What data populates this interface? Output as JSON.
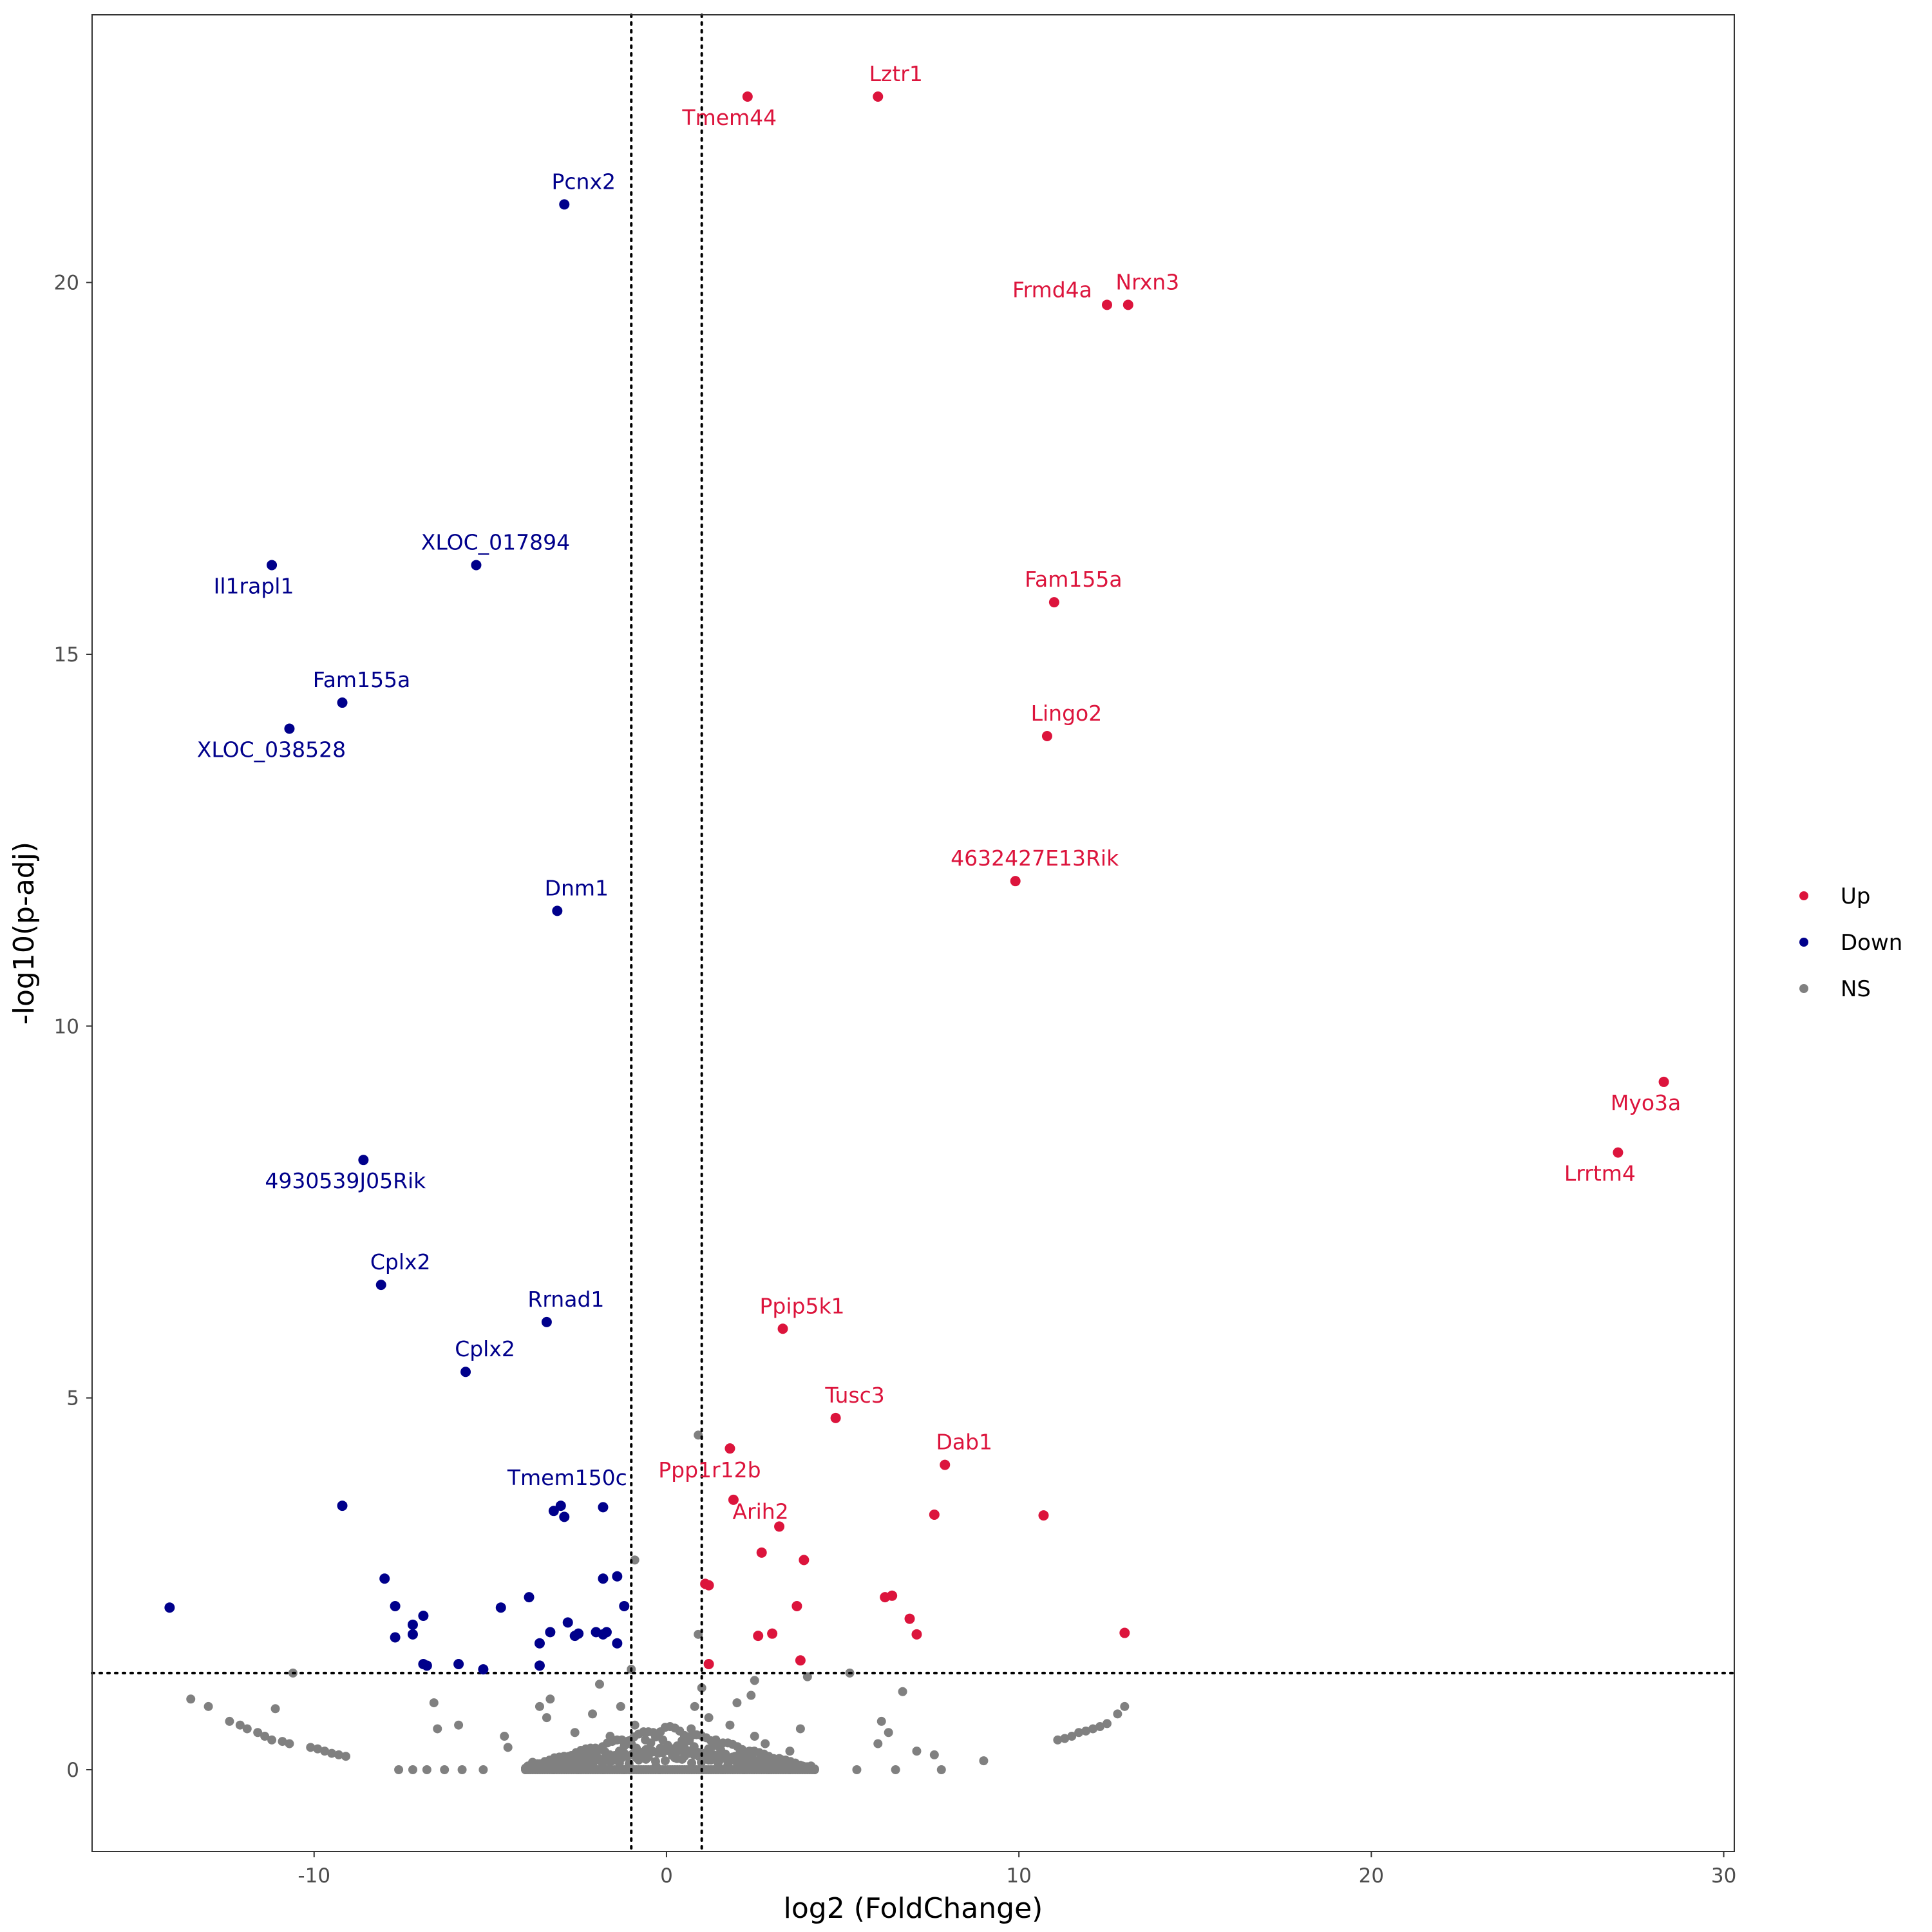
{
  "chart_data": {
    "type": "scatter",
    "title": "",
    "xlabel": "log2 (FoldChange)",
    "ylabel": "-log10(p-adj)",
    "xlim": [
      -16.3,
      30.3
    ],
    "ylim": [
      -1.1,
      23.6
    ],
    "x_ticks": [
      -10,
      0,
      10,
      20,
      30
    ],
    "y_ticks": [
      0,
      5,
      10,
      15,
      20
    ],
    "thresholds": {
      "log2fc": [
        -1,
        1
      ],
      "neg_log10_padj": 1.3
    },
    "colors": {
      "Up": "#DC143C",
      "Down": "#00008B",
      "NS": "#808080",
      "threshold": "#000000",
      "panel_border": "#333333"
    },
    "legend": {
      "position": "right",
      "entries": [
        {
          "name": "Up",
          "color": "#DC143C"
        },
        {
          "name": "Down",
          "color": "#00008B"
        },
        {
          "name": "NS",
          "color": "#808080"
        }
      ]
    },
    "series": [
      {
        "name": "Up",
        "points": [
          {
            "x": 2.3,
            "y": 22.5,
            "label": "Tmem44"
          },
          {
            "x": 6.0,
            "y": 22.5,
            "label": "Lztr1"
          },
          {
            "x": 12.5,
            "y": 19.7,
            "label": "Frmd4a"
          },
          {
            "x": 13.1,
            "y": 19.7,
            "label": "Nrxn3"
          },
          {
            "x": 11.0,
            "y": 15.7,
            "label": "Fam155a"
          },
          {
            "x": 10.8,
            "y": 13.9,
            "label": "Lingo2"
          },
          {
            "x": 9.9,
            "y": 11.95,
            "label": "4632427E13Rik"
          },
          {
            "x": 28.3,
            "y": 9.25,
            "label": "Myo3a"
          },
          {
            "x": 27.0,
            "y": 8.3,
            "label": "Lrrtm4"
          },
          {
            "x": 3.3,
            "y": 5.93,
            "label": "Ppip5k1"
          },
          {
            "x": 4.8,
            "y": 4.73,
            "label": "Tusc3"
          },
          {
            "x": 7.9,
            "y": 4.1,
            "label": "Dab1"
          },
          {
            "x": 1.9,
            "y": 3.63,
            "label": "Ppp1r12b"
          },
          {
            "x": 3.2,
            "y": 3.27,
            "label": "Arih2"
          },
          {
            "x": 1.8,
            "y": 4.32,
            "label": ""
          },
          {
            "x": 7.6,
            "y": 3.43,
            "label": ""
          },
          {
            "x": 10.7,
            "y": 3.42,
            "label": ""
          },
          {
            "x": 2.7,
            "y": 2.92,
            "label": ""
          },
          {
            "x": 3.9,
            "y": 2.82,
            "label": ""
          },
          {
            "x": 1.1,
            "y": 2.5,
            "label": ""
          },
          {
            "x": 1.2,
            "y": 2.48,
            "label": ""
          },
          {
            "x": 6.2,
            "y": 2.32,
            "label": ""
          },
          {
            "x": 6.4,
            "y": 2.34,
            "label": ""
          },
          {
            "x": 3.7,
            "y": 2.2,
            "label": ""
          },
          {
            "x": 6.9,
            "y": 2.03,
            "label": ""
          },
          {
            "x": 7.1,
            "y": 1.82,
            "label": ""
          },
          {
            "x": 2.6,
            "y": 1.8,
            "label": ""
          },
          {
            "x": 3.0,
            "y": 1.83,
            "label": ""
          },
          {
            "x": 13.0,
            "y": 1.84,
            "label": ""
          },
          {
            "x": 3.8,
            "y": 1.47,
            "label": ""
          },
          {
            "x": 1.2,
            "y": 1.42,
            "label": ""
          }
        ]
      },
      {
        "name": "Down",
        "points": [
          {
            "x": -2.9,
            "y": 21.05,
            "label": "Pcnx2"
          },
          {
            "x": -5.4,
            "y": 16.2,
            "label": "XLOC_017894"
          },
          {
            "x": -11.2,
            "y": 16.2,
            "label": "Il1rapl1"
          },
          {
            "x": -9.2,
            "y": 14.35,
            "label": "Fam155a"
          },
          {
            "x": -10.7,
            "y": 14.0,
            "label": "XLOC_038528"
          },
          {
            "x": -3.1,
            "y": 11.55,
            "label": "Dnm1"
          },
          {
            "x": -8.6,
            "y": 8.2,
            "label": "4930539J05Rik"
          },
          {
            "x": -8.1,
            "y": 6.52,
            "label": "Cplx2"
          },
          {
            "x": -3.4,
            "y": 6.02,
            "label": "Rrnad1"
          },
          {
            "x": -5.7,
            "y": 5.35,
            "label": "Cplx2"
          },
          {
            "x": -3.0,
            "y": 3.55,
            "label": "Tmem150c"
          },
          {
            "x": -9.2,
            "y": 3.55,
            "label": ""
          },
          {
            "x": -3.2,
            "y": 3.48,
            "label": ""
          },
          {
            "x": -2.9,
            "y": 3.4,
            "label": ""
          },
          {
            "x": -1.8,
            "y": 3.53,
            "label": ""
          },
          {
            "x": -14.1,
            "y": 2.18,
            "label": ""
          },
          {
            "x": -8.0,
            "y": 2.57,
            "label": ""
          },
          {
            "x": -7.7,
            "y": 2.2,
            "label": ""
          },
          {
            "x": -7.2,
            "y": 1.95,
            "label": ""
          },
          {
            "x": -6.9,
            "y": 2.07,
            "label": ""
          },
          {
            "x": -7.7,
            "y": 1.78,
            "label": ""
          },
          {
            "x": -7.2,
            "y": 1.82,
            "label": ""
          },
          {
            "x": -6.9,
            "y": 1.42,
            "label": ""
          },
          {
            "x": -6.8,
            "y": 1.4,
            "label": ""
          },
          {
            "x": -5.9,
            "y": 1.42,
            "label": ""
          },
          {
            "x": -5.2,
            "y": 1.35,
            "label": ""
          },
          {
            "x": -4.7,
            "y": 2.18,
            "label": ""
          },
          {
            "x": -3.9,
            "y": 2.32,
            "label": ""
          },
          {
            "x": -3.6,
            "y": 1.7,
            "label": ""
          },
          {
            "x": -3.3,
            "y": 1.85,
            "label": ""
          },
          {
            "x": -3.6,
            "y": 1.4,
            "label": ""
          },
          {
            "x": -2.8,
            "y": 1.98,
            "label": ""
          },
          {
            "x": -2.6,
            "y": 1.8,
            "label": ""
          },
          {
            "x": -2.5,
            "y": 1.83,
            "label": ""
          },
          {
            "x": -2.0,
            "y": 1.85,
            "label": ""
          },
          {
            "x": -1.8,
            "y": 1.82,
            "label": ""
          },
          {
            "x": -1.7,
            "y": 1.85,
            "label": ""
          },
          {
            "x": -1.4,
            "y": 1.7,
            "label": ""
          },
          {
            "x": -1.8,
            "y": 2.57,
            "label": ""
          },
          {
            "x": -1.4,
            "y": 2.6,
            "label": ""
          },
          {
            "x": -1.2,
            "y": 2.2,
            "label": ""
          }
        ]
      },
      {
        "name": "NS",
        "points": [
          {
            "x": 0.9,
            "y": 4.5
          },
          {
            "x": 0.9,
            "y": 1.82
          },
          {
            "x": -0.9,
            "y": 2.82
          },
          {
            "x": -10.6,
            "y": 1.3
          },
          {
            "x": -13.5,
            "y": 0.95
          },
          {
            "x": -13.0,
            "y": 0.85
          },
          {
            "x": -12.4,
            "y": 0.65
          },
          {
            "x": -12.1,
            "y": 0.6
          },
          {
            "x": -11.9,
            "y": 0.55
          },
          {
            "x": -11.6,
            "y": 0.5
          },
          {
            "x": -11.4,
            "y": 0.45
          },
          {
            "x": -11.2,
            "y": 0.4
          },
          {
            "x": -10.9,
            "y": 0.38
          },
          {
            "x": -10.7,
            "y": 0.35
          },
          {
            "x": -11.1,
            "y": 0.82
          },
          {
            "x": -10.1,
            "y": 0.3
          },
          {
            "x": -9.9,
            "y": 0.28
          },
          {
            "x": -9.7,
            "y": 0.25
          },
          {
            "x": -9.5,
            "y": 0.22
          },
          {
            "x": -9.3,
            "y": 0.2
          },
          {
            "x": -9.1,
            "y": 0.18
          },
          {
            "x": -7.6,
            "y": 0
          },
          {
            "x": -7.2,
            "y": 0
          },
          {
            "x": -6.8,
            "y": 0
          },
          {
            "x": -6.3,
            "y": 0
          },
          {
            "x": -5.8,
            "y": 0
          },
          {
            "x": -5.2,
            "y": 0
          },
          {
            "x": -6.6,
            "y": 0.9
          },
          {
            "x": -6.5,
            "y": 0.55
          },
          {
            "x": -5.9,
            "y": 0.6
          },
          {
            "x": -4.6,
            "y": 0.45
          },
          {
            "x": -4.5,
            "y": 0.3
          },
          {
            "x": -3.6,
            "y": 0.85
          },
          {
            "x": -3.4,
            "y": 0.7
          },
          {
            "x": -3.3,
            "y": 0.95
          },
          {
            "x": -2.6,
            "y": 0.5
          },
          {
            "x": -2.1,
            "y": 0.75
          },
          {
            "x": -1.9,
            "y": 1.15
          },
          {
            "x": -1.6,
            "y": 0.45
          },
          {
            "x": -1.3,
            "y": 0.85
          },
          {
            "x": -1.0,
            "y": 1.35
          },
          {
            "x": -0.9,
            "y": 0.6
          },
          {
            "x": -0.6,
            "y": 0.4
          },
          {
            "x": -0.4,
            "y": 0.25
          },
          {
            "x": -0.3,
            "y": 0.05
          },
          {
            "x": -0.2,
            "y": 0
          },
          {
            "x": -4.0,
            "y": 0
          },
          {
            "x": -3.2,
            "y": 0
          },
          {
            "x": -2.5,
            "y": 0
          },
          {
            "x": -1.8,
            "y": 0
          },
          {
            "x": -1.2,
            "y": 0
          },
          {
            "x": -2.3,
            "y": 0.2
          },
          {
            "x": -2.8,
            "y": 0.15
          },
          {
            "x": -3.8,
            "y": 0.1
          },
          {
            "x": 0.3,
            "y": 0.15
          },
          {
            "x": 0.5,
            "y": 0.35
          },
          {
            "x": 0.7,
            "y": 0.55
          },
          {
            "x": 0.8,
            "y": 0.85
          },
          {
            "x": 1.0,
            "y": 1.1
          },
          {
            "x": 1.2,
            "y": 0.7
          },
          {
            "x": 1.4,
            "y": 0.4
          },
          {
            "x": 1.6,
            "y": 0.2
          },
          {
            "x": 1.8,
            "y": 0.6
          },
          {
            "x": 2.0,
            "y": 0.9
          },
          {
            "x": 2.4,
            "y": 1.0
          },
          {
            "x": 2.5,
            "y": 0.45
          },
          {
            "x": 2.5,
            "y": 1.2
          },
          {
            "x": 2.8,
            "y": 0.35
          },
          {
            "x": 3.2,
            "y": 0.15
          },
          {
            "x": 3.5,
            "y": 0.25
          },
          {
            "x": 3.8,
            "y": 0.55
          },
          {
            "x": 4.1,
            "y": 0.05
          },
          {
            "x": 1.0,
            "y": 0
          },
          {
            "x": 1.6,
            "y": 0
          },
          {
            "x": 2.2,
            "y": 0
          },
          {
            "x": 2.9,
            "y": 0
          },
          {
            "x": 3.5,
            "y": 0
          },
          {
            "x": 4.2,
            "y": 0
          },
          {
            "x": 4.0,
            "y": 1.25
          },
          {
            "x": 5.2,
            "y": 1.3
          },
          {
            "x": 5.4,
            "y": 0
          },
          {
            "x": 6.1,
            "y": 0.65
          },
          {
            "x": 6.0,
            "y": 0.35
          },
          {
            "x": 6.3,
            "y": 0.5
          },
          {
            "x": 6.5,
            "y": 0
          },
          {
            "x": 6.7,
            "y": 1.05
          },
          {
            "x": 7.1,
            "y": 0.25
          },
          {
            "x": 7.6,
            "y": 0.2
          },
          {
            "x": 7.8,
            "y": 0
          },
          {
            "x": 9.0,
            "y": 0.12
          },
          {
            "x": 11.1,
            "y": 0.4
          },
          {
            "x": 11.3,
            "y": 0.42
          },
          {
            "x": 11.5,
            "y": 0.45
          },
          {
            "x": 11.7,
            "y": 0.5
          },
          {
            "x": 11.9,
            "y": 0.52
          },
          {
            "x": 12.1,
            "y": 0.55
          },
          {
            "x": 12.3,
            "y": 0.58
          },
          {
            "x": 12.5,
            "y": 0.62
          },
          {
            "x": 12.8,
            "y": 0.75
          },
          {
            "x": 13.0,
            "y": 0.85
          }
        ]
      }
    ]
  }
}
